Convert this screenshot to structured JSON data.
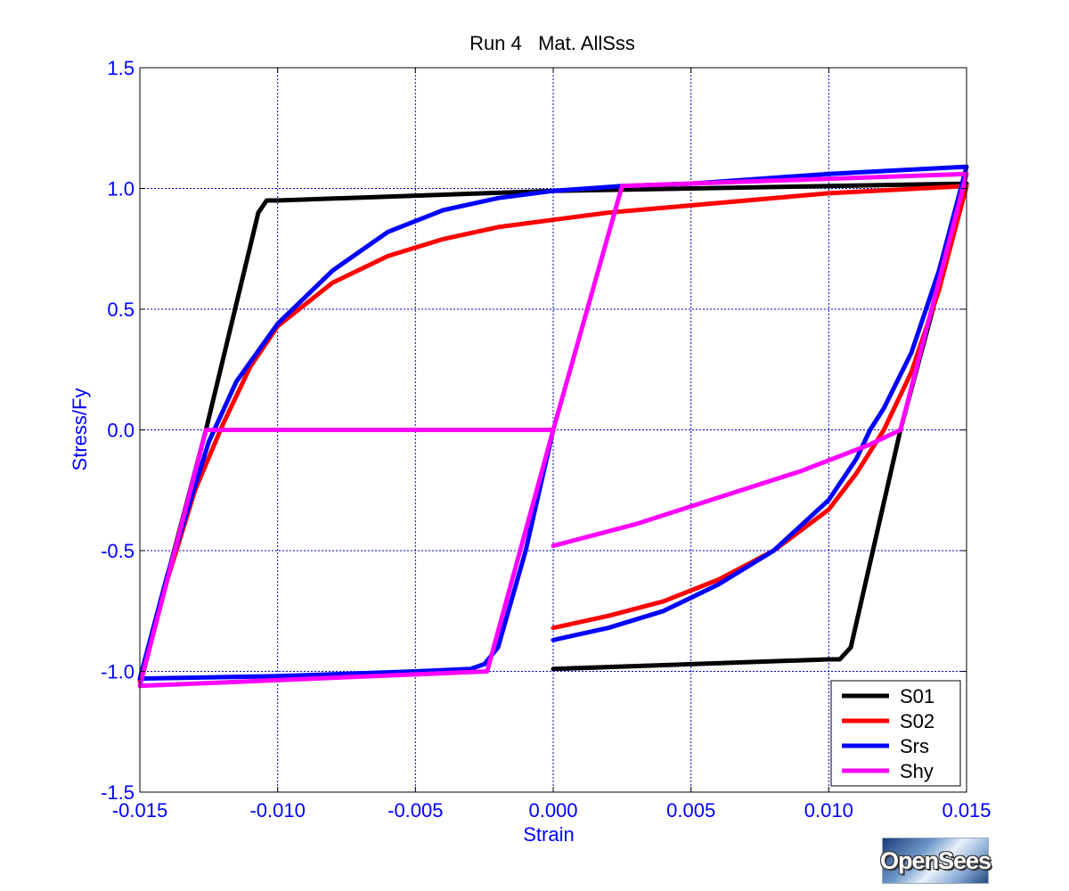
{
  "logo": {
    "text": "OpenSees"
  },
  "chart_data": {
    "type": "line",
    "title": "Run 4   Mat. AllSss",
    "xlabel": "Strain",
    "ylabel": "Stress/Fy",
    "xlim": [
      -0.015,
      0.015
    ],
    "ylim": [
      -1.5,
      1.5
    ],
    "xticks": [
      -0.015,
      -0.01,
      -0.005,
      0.0,
      0.005,
      0.01,
      0.015
    ],
    "xtick_labels": [
      "-0.015",
      "-0.010",
      "-0.005",
      "0.000",
      "0.005",
      "0.010",
      "0.015"
    ],
    "yticks": [
      -1.5,
      -1.0,
      -0.5,
      0.0,
      0.5,
      1.0,
      1.5
    ],
    "ytick_labels": [
      "-1.5",
      "-1.0",
      "-0.5",
      "0.0",
      "0.5",
      "1.0",
      "1.5"
    ],
    "grid": true,
    "legend_position": "bottom-right",
    "series": [
      {
        "name": "S01",
        "color": "#000000",
        "points": [
          [
            0.0,
            -0.99
          ],
          [
            0.01,
            -0.95
          ],
          [
            0.0104,
            -0.95
          ],
          [
            0.0108,
            -0.9
          ],
          [
            0.0126,
            0.0
          ],
          [
            0.015,
            1.02
          ],
          [
            0.0,
            0.99
          ],
          [
            -0.01,
            0.95
          ],
          [
            -0.0104,
            0.95
          ],
          [
            -0.0107,
            0.9
          ],
          [
            -0.0126,
            0.0
          ],
          [
            -0.015,
            -1.04
          ]
        ]
      },
      {
        "name": "S02",
        "color": "#ff0000",
        "points": [
          [
            0.0,
            -0.82
          ],
          [
            0.002,
            -0.77
          ],
          [
            0.004,
            -0.71
          ],
          [
            0.006,
            -0.62
          ],
          [
            0.008,
            -0.5
          ],
          [
            0.01,
            -0.33
          ],
          [
            0.011,
            -0.18
          ],
          [
            0.012,
            0.0
          ],
          [
            0.013,
            0.24
          ],
          [
            0.014,
            0.58
          ],
          [
            0.015,
            1.01
          ],
          [
            0.01,
            0.98
          ],
          [
            0.005,
            0.93
          ],
          [
            0.002,
            0.9
          ],
          [
            0.0,
            0.87
          ],
          [
            -0.002,
            0.84
          ],
          [
            -0.004,
            0.79
          ],
          [
            -0.006,
            0.72
          ],
          [
            -0.008,
            0.61
          ],
          [
            -0.01,
            0.43
          ],
          [
            -0.011,
            0.26
          ],
          [
            -0.012,
            0.02
          ],
          [
            -0.013,
            -0.25
          ],
          [
            -0.014,
            -0.62
          ],
          [
            -0.015,
            -1.04
          ]
        ]
      },
      {
        "name": "Srs",
        "color": "#0000ff",
        "points": [
          [
            0.0,
            -0.87
          ],
          [
            0.002,
            -0.82
          ],
          [
            0.004,
            -0.75
          ],
          [
            0.006,
            -0.64
          ],
          [
            0.008,
            -0.5
          ],
          [
            0.01,
            -0.29
          ],
          [
            0.011,
            -0.12
          ],
          [
            0.0115,
            0.0
          ],
          [
            0.012,
            0.09
          ],
          [
            0.013,
            0.32
          ],
          [
            0.014,
            0.66
          ],
          [
            0.015,
            1.09
          ],
          [
            0.01,
            1.06
          ],
          [
            0.005,
            1.02
          ],
          [
            0.0025,
            1.01
          ],
          [
            0.0,
            0.99
          ],
          [
            -0.002,
            0.96
          ],
          [
            -0.004,
            0.91
          ],
          [
            -0.006,
            0.82
          ],
          [
            -0.008,
            0.66
          ],
          [
            -0.01,
            0.44
          ],
          [
            -0.0115,
            0.2
          ],
          [
            -0.0125,
            -0.05
          ],
          [
            -0.014,
            -0.6
          ],
          [
            -0.015,
            -1.03
          ],
          [
            -0.01,
            -1.02
          ],
          [
            -0.005,
            -1.0
          ],
          [
            -0.003,
            -0.99
          ],
          [
            -0.0025,
            -0.97
          ],
          [
            -0.002,
            -0.9
          ],
          [
            -0.001,
            -0.5
          ],
          [
            0.0,
            0.0
          ]
        ]
      },
      {
        "name": "Shy",
        "color": "#ff00ff",
        "points": [
          [
            0.0,
            -0.48
          ],
          [
            0.003,
            -0.39
          ],
          [
            0.006,
            -0.28
          ],
          [
            0.009,
            -0.17
          ],
          [
            0.0115,
            -0.06
          ],
          [
            0.0126,
            0.0
          ],
          [
            0.015,
            1.06
          ],
          [
            0.0025,
            1.01
          ],
          [
            0.0,
            0.0
          ],
          [
            -0.0126,
            0.0
          ],
          [
            -0.015,
            -1.06
          ],
          [
            -0.0024,
            -1.0
          ],
          [
            0.0,
            0.0
          ]
        ]
      }
    ]
  }
}
